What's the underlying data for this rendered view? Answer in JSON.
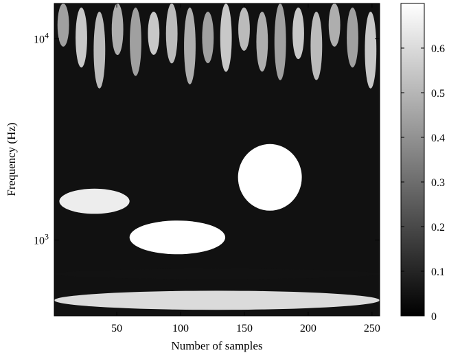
{
  "chart_data": {
    "type": "heatmap",
    "title": "",
    "xlabel": "Number of samples",
    "ylabel": "Frequency (Hz)",
    "xlim": [
      1,
      256
    ],
    "ylim": [
      420,
      15000
    ],
    "yscale": "log",
    "x_ticks": [
      50,
      100,
      150,
      200,
      250
    ],
    "x_tick_labels": [
      "50",
      "100",
      "150",
      "200",
      "250"
    ],
    "y_ticks": [
      {
        "value": 1000,
        "base": "10",
        "exp": "3"
      },
      {
        "value": 10000,
        "base": "10",
        "exp": "4"
      }
    ],
    "colormap": "gray",
    "colorbar": {
      "range": [
        0,
        0.7
      ],
      "ticks": [
        0,
        0.1,
        0.2,
        0.3,
        0.4,
        0.5,
        0.6
      ],
      "tick_labels": [
        "0",
        "0.1",
        "0.2",
        "0.3",
        "0.4",
        "0.5",
        "0.6"
      ]
    },
    "grid": false,
    "features": [
      {
        "x": [
          1,
          256
        ],
        "y": [
          450,
          560
        ],
        "level": 0.6
      },
      {
        "x": [
          1,
          256
        ],
        "y": [
          640,
          720
        ],
        "level": 0.05
      },
      {
        "x": [
          60,
          135
        ],
        "y": [
          850,
          1250
        ],
        "level": 0.7
      },
      {
        "x": [
          5,
          60
        ],
        "y": [
          1350,
          1800
        ],
        "level": 0.65
      },
      {
        "x": [
          145,
          195
        ],
        "y": [
          1400,
          3000
        ],
        "level": 0.7
      },
      {
        "x": [
          1,
          256
        ],
        "y": [
          5000,
          15000
        ],
        "level": 0.55,
        "pattern": "oscillating"
      }
    ]
  }
}
